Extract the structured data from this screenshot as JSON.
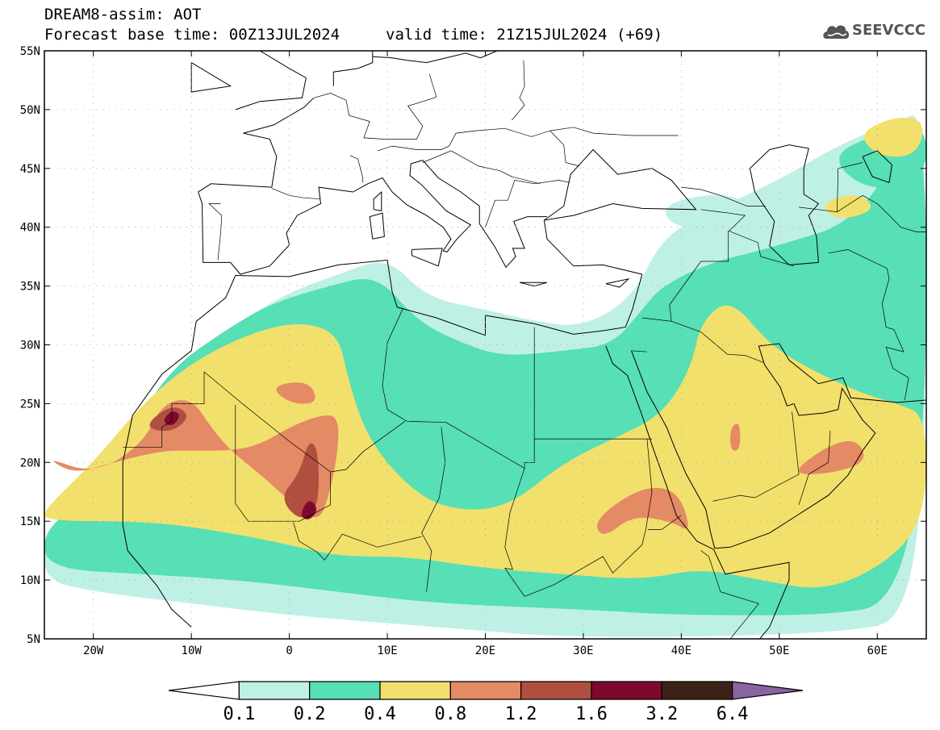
{
  "header": {
    "title_line1": "DREAM8-assim: AOT",
    "title_line2": "Forecast base time: 00Z13JUL2024",
    "valid_time": "valid time: 21Z15JUL2024 (+69)",
    "logo_text": "SEEVCCC"
  },
  "map": {
    "lon_range": [
      -25,
      65
    ],
    "lat_range": [
      5,
      55
    ],
    "lat_ticks": [
      {
        "v": 55,
        "t": "55N"
      },
      {
        "v": 50,
        "t": "50N"
      },
      {
        "v": 45,
        "t": "45N"
      },
      {
        "v": 40,
        "t": "40N"
      },
      {
        "v": 35,
        "t": "35N"
      },
      {
        "v": 30,
        "t": "30N"
      },
      {
        "v": 25,
        "t": "25N"
      },
      {
        "v": 20,
        "t": "20N"
      },
      {
        "v": 15,
        "t": "15N"
      },
      {
        "v": 10,
        "t": "10N"
      },
      {
        "v": 5,
        "t": "5N"
      }
    ],
    "lon_ticks": [
      {
        "v": -20,
        "t": "20W"
      },
      {
        "v": -10,
        "t": "10W"
      },
      {
        "v": 0,
        "t": "0"
      },
      {
        "v": 10,
        "t": "10E"
      },
      {
        "v": 20,
        "t": "20E"
      },
      {
        "v": 30,
        "t": "30E"
      },
      {
        "v": 40,
        "t": "40E"
      },
      {
        "v": 50,
        "t": "50E"
      },
      {
        "v": 60,
        "t": "60E"
      }
    ],
    "grid": true
  },
  "colorbar": {
    "labels": [
      "0.1",
      "0.2",
      "0.4",
      "0.8",
      "1.2",
      "1.6",
      "3.2",
      "6.4"
    ],
    "colors": [
      "#ffffff",
      "#bff0e6",
      "#57dfb6",
      "#f2e06c",
      "#e48a65",
      "#b04f40",
      "#7d0a2c",
      "#3e2116",
      "#8a63a2"
    ]
  },
  "colors": {
    "c1": "#bff0e6",
    "c2": "#57dfb6",
    "c3": "#f2e06c",
    "c4": "#e48a65",
    "c5": "#b04f40",
    "c6": "#7d0a2c"
  },
  "dust_regions": {
    "level1": [
      [
        [
          -25,
          13.5
        ],
        [
          -20,
          16
        ],
        [
          -15,
          22
        ],
        [
          -10,
          29
        ],
        [
          -5,
          32
        ],
        [
          0,
          34.5
        ],
        [
          5,
          36
        ],
        [
          10,
          37.5
        ],
        [
          14,
          34
        ],
        [
          20,
          33
        ],
        [
          25,
          32
        ],
        [
          30,
          31.5
        ],
        [
          35,
          34
        ],
        [
          38,
          39
        ],
        [
          42,
          41
        ],
        [
          50,
          44
        ],
        [
          56,
          47
        ],
        [
          62,
          49
        ],
        [
          65,
          50
        ],
        [
          65,
          20
        ],
        [
          63,
          7
        ],
        [
          58,
          5.5
        ],
        [
          30,
          5
        ],
        [
          15,
          6
        ],
        [
          0,
          7
        ],
        [
          -10,
          8
        ],
        [
          -20,
          9
        ],
        [
          -25,
          10
        ]
      ],
      [
        [
          38,
          42
        ],
        [
          44,
          43
        ],
        [
          47,
          42
        ],
        [
          44,
          40
        ],
        [
          39,
          40
        ]
      ]
    ],
    "level2": [
      [
        [
          -25,
          14.5
        ],
        [
          -20,
          17
        ],
        [
          -16,
          23
        ],
        [
          -12,
          28
        ],
        [
          -7,
          31
        ],
        [
          -2,
          33.5
        ],
        [
          4,
          35
        ],
        [
          9,
          36
        ],
        [
          13,
          32
        ],
        [
          18,
          30
        ],
        [
          22,
          29
        ],
        [
          28,
          29.5
        ],
        [
          33,
          30
        ],
        [
          36,
          33
        ],
        [
          38,
          35
        ],
        [
          43,
          37
        ],
        [
          48,
          38
        ],
        [
          52,
          39
        ],
        [
          56,
          40
        ],
        [
          60,
          43
        ],
        [
          62,
          47
        ],
        [
          65,
          49
        ],
        [
          65,
          22
        ],
        [
          62,
          8
        ],
        [
          55,
          7
        ],
        [
          40,
          7
        ],
        [
          30,
          7.5
        ],
        [
          15,
          8
        ],
        [
          5,
          9
        ],
        [
          -5,
          10
        ],
        [
          -15,
          10.5
        ],
        [
          -25,
          11
        ]
      ],
      [
        [
          55,
          46
        ],
        [
          60,
          48
        ],
        [
          65,
          49
        ],
        [
          65,
          44
        ],
        [
          59,
          43
        ]
      ]
    ],
    "level3": [
      [
        [
          -25,
          16
        ],
        [
          -20,
          20
        ],
        [
          -15,
          25
        ],
        [
          -10,
          28.5
        ],
        [
          -4,
          31
        ],
        [
          1,
          32
        ],
        [
          5,
          31
        ],
        [
          6,
          27
        ],
        [
          8,
          22
        ],
        [
          12,
          18
        ],
        [
          16,
          16
        ],
        [
          22,
          16
        ],
        [
          28,
          20
        ],
        [
          33,
          22
        ],
        [
          38,
          24
        ],
        [
          41,
          28
        ],
        [
          42,
          32
        ],
        [
          45,
          34
        ],
        [
          49,
          30
        ],
        [
          53,
          28
        ],
        [
          58,
          26
        ],
        [
          62,
          25
        ],
        [
          65,
          24
        ],
        [
          65,
          16
        ],
        [
          62,
          12
        ],
        [
          55,
          9
        ],
        [
          48,
          10
        ],
        [
          42,
          11
        ],
        [
          36,
          10
        ],
        [
          28,
          10.5
        ],
        [
          20,
          11
        ],
        [
          12,
          12
        ],
        [
          5,
          12
        ],
        [
          0,
          13
        ],
        [
          -6,
          14
        ],
        [
          -14,
          15
        ],
        [
          -25,
          15
        ]
      ],
      [
        [
          -4,
          27
        ],
        [
          1,
          31
        ],
        [
          5,
          30.5
        ],
        [
          4,
          26
        ],
        [
          0,
          25
        ]
      ],
      [
        [
          58,
          48
        ],
        [
          62,
          49.5
        ],
        [
          65,
          49
        ],
        [
          64,
          46
        ],
        [
          60,
          46
        ]
      ],
      [
        [
          54,
          42
        ],
        [
          58,
          43
        ],
        [
          60,
          41.5
        ],
        [
          56,
          40.5
        ]
      ]
    ],
    "level4": [
      [
        [
          -25,
          20.5
        ],
        [
          -20,
          19
        ],
        [
          -15,
          21.5
        ],
        [
          -13,
          25
        ],
        [
          -10,
          25.5
        ],
        [
          -8,
          23
        ],
        [
          -6,
          21
        ],
        [
          -3,
          19
        ],
        [
          -1,
          17.5
        ],
        [
          1,
          16
        ],
        [
          3,
          15
        ],
        [
          4,
          17
        ],
        [
          5,
          21
        ],
        [
          5,
          24
        ],
        [
          3,
          24
        ],
        [
          0,
          23
        ],
        [
          -3,
          21.5
        ],
        [
          -6,
          21
        ],
        [
          -10,
          21
        ],
        [
          -13,
          21
        ],
        [
          -18,
          20
        ],
        [
          -22,
          19
        ]
      ],
      [
        [
          -2,
          26.5
        ],
        [
          2,
          27
        ],
        [
          3,
          25
        ],
        [
          0,
          25
        ]
      ],
      [
        [
          31,
          15
        ],
        [
          35,
          17.5
        ],
        [
          38,
          18
        ],
        [
          40,
          17
        ],
        [
          41,
          14
        ],
        [
          39,
          15
        ],
        [
          35,
          15.5
        ],
        [
          32,
          13.5
        ]
      ],
      [
        [
          45,
          23
        ],
        [
          46,
          23.5
        ],
        [
          46,
          21
        ],
        [
          45,
          21
        ]
      ],
      [
        [
          51,
          19
        ],
        [
          55,
          21.5
        ],
        [
          58,
          22
        ],
        [
          59,
          20
        ],
        [
          55,
          19
        ]
      ]
    ],
    "level5": [
      [
        [
          -15,
          23
        ],
        [
          -12,
          25
        ],
        [
          -10,
          24
        ],
        [
          -12,
          22.5
        ]
      ],
      [
        [
          -1,
          17
        ],
        [
          1,
          19
        ],
        [
          2,
          22
        ],
        [
          3,
          21
        ],
        [
          3,
          16
        ],
        [
          1,
          15
        ]
      ]
    ],
    "level6": [
      [
        [
          -13,
          23.5
        ],
        [
          -12,
          24.5
        ],
        [
          -11,
          24
        ],
        [
          -12,
          23
        ]
      ],
      [
        [
          1,
          15.5
        ],
        [
          2,
          17
        ],
        [
          3,
          16
        ],
        [
          2,
          15
        ]
      ]
    ]
  }
}
